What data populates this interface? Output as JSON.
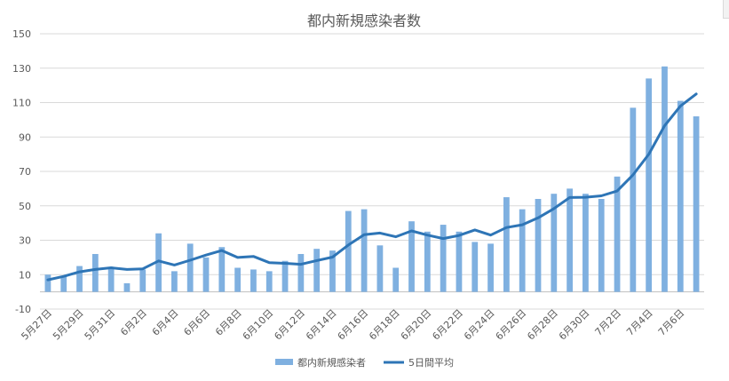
{
  "chart_data": {
    "type": "bar",
    "title": "都内新規感染者数",
    "xlabel": "",
    "ylabel": "",
    "ylim": [
      -10,
      150
    ],
    "y_ticks": [
      -10,
      10,
      30,
      50,
      70,
      90,
      110,
      130,
      150
    ],
    "grid": true,
    "legend_position": "bottom",
    "categories": [
      "5月27日",
      "5月28日",
      "5月29日",
      "5月30日",
      "5月31日",
      "6月1日",
      "6月2日",
      "6月3日",
      "6月4日",
      "6月5日",
      "6月6日",
      "6月7日",
      "6月8日",
      "6月9日",
      "6月10日",
      "6月11日",
      "6月12日",
      "6月13日",
      "6月14日",
      "6月15日",
      "6月16日",
      "6月17日",
      "6月18日",
      "6月19日",
      "6月20日",
      "6月21日",
      "6月22日",
      "6月23日",
      "6月24日",
      "6月25日",
      "6月26日",
      "6月27日",
      "6月28日",
      "6月29日",
      "6月30日",
      "7月1日",
      "7月2日",
      "7月3日",
      "7月4日",
      "7月5日",
      "7月6日",
      "7月7日"
    ],
    "x_tick_labels": [
      "5月27日",
      "5月29日",
      "5月31日",
      "6月2日",
      "6月4日",
      "6月6日",
      "6月8日",
      "6月10日",
      "6月12日",
      "6月14日",
      "6月16日",
      "6月18日",
      "6月20日",
      "6月22日",
      "6月24日",
      "6月26日",
      "6月28日",
      "6月30日",
      "7月2日",
      "7月4日",
      "7月6日"
    ],
    "series": [
      {
        "name": "都内新規感染者",
        "type": "bar",
        "color": "#7fb0e0",
        "values": [
          10,
          9,
          15,
          22,
          14,
          5,
          13,
          34,
          12,
          28,
          20,
          26,
          14,
          13,
          12,
          18,
          22,
          25,
          24,
          47,
          48,
          27,
          14,
          41,
          35,
          39,
          35,
          29,
          28,
          55,
          48,
          54,
          57,
          60,
          57,
          54,
          67,
          107,
          124,
          131,
          111,
          102
        ]
      },
      {
        "name": "5日間平均",
        "type": "line",
        "color": "#2e75b6",
        "values": [
          7,
          9,
          11.6,
          13,
          14,
          13,
          13.4,
          18,
          15.6,
          18.4,
          21.4,
          24,
          20,
          20.6,
          17,
          16.6,
          16,
          18.2,
          20.2,
          27.2,
          33.2,
          34.2,
          32,
          35.4,
          33,
          31,
          32.8,
          36,
          33,
          37.4,
          39,
          43,
          48.4,
          54.8,
          55,
          55.8,
          58.6,
          68,
          80,
          96.6,
          108,
          115
        ]
      }
    ]
  }
}
